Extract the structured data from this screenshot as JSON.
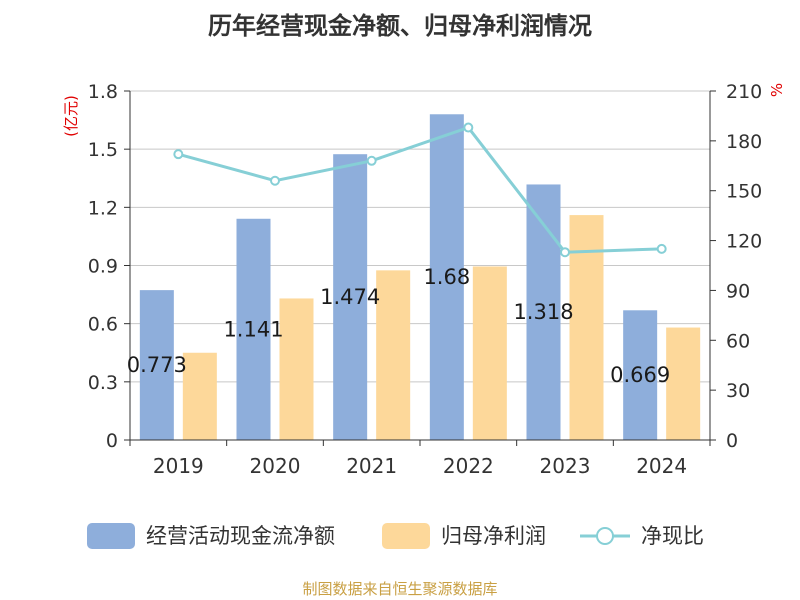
{
  "chart_data": {
    "type": "bar+line",
    "title": "历年经营现金净额、归母净利润情况",
    "categories": [
      "2019",
      "2020",
      "2021",
      "2022",
      "2023",
      "2024"
    ],
    "y_left": {
      "label": "(亿元)",
      "ylim": [
        0,
        1.8
      ],
      "ticks": [
        "0",
        "0.3",
        "0.6",
        "0.9",
        "1.2",
        "1.5",
        "1.8"
      ]
    },
    "y_right": {
      "label": "%",
      "ylim": [
        0,
        210
      ],
      "ticks": [
        "0",
        "30",
        "60",
        "90",
        "120",
        "150",
        "180",
        "210"
      ]
    },
    "series": [
      {
        "name": "经营活动现金流净额",
        "type": "bar",
        "axis": "left",
        "color": "#8eaedb",
        "values": [
          0.773,
          1.141,
          1.474,
          1.68,
          1.318,
          0.669
        ],
        "labels": [
          "0.773",
          "1.141",
          "1.474",
          "1.68",
          "1.318",
          "0.669"
        ]
      },
      {
        "name": "归母净利润",
        "type": "bar",
        "axis": "left",
        "color": "#fdd89a",
        "values": [
          0.45,
          0.73,
          0.875,
          0.895,
          1.16,
          0.58
        ]
      },
      {
        "name": "净现比",
        "type": "line",
        "axis": "right",
        "color": "#86cfd6",
        "values": [
          172,
          156,
          168,
          188,
          113,
          115
        ]
      }
    ],
    "grid": true,
    "legend_position": "bottom"
  },
  "source": "制图数据来自恒生聚源数据库"
}
